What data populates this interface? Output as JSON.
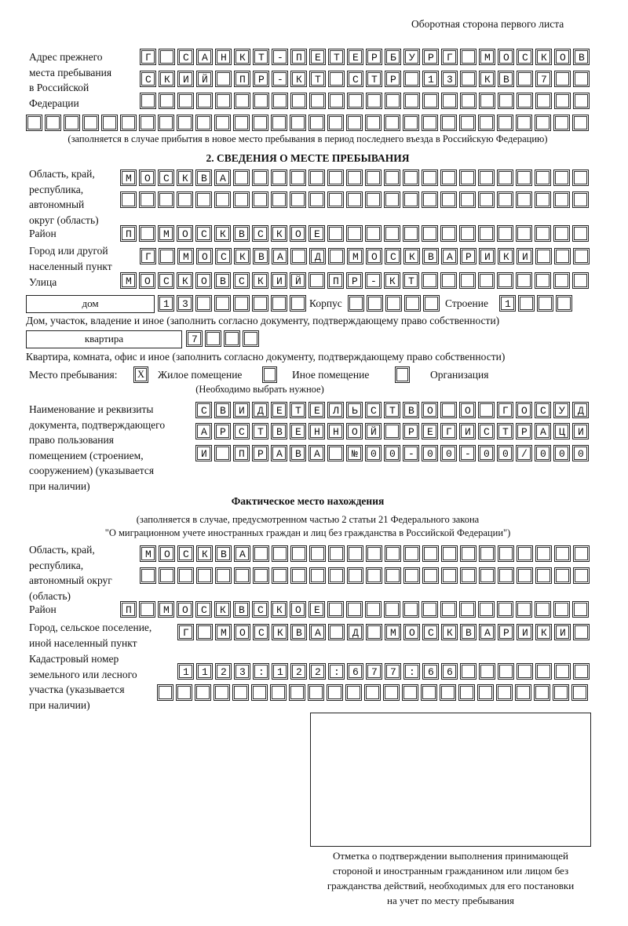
{
  "page_side": "Оборотная сторона первого листа",
  "previous_address": {
    "label_lines": [
      "Адрес прежнего",
      "места пребывания",
      "в Российской",
      "Федерации"
    ],
    "rows": [
      "Г САНКТ-ПЕТЕРБУРГ МОСКОВ",
      "СКИЙ ПР-КТ СТР 13 КВ 7",
      "",
      ""
    ],
    "note": "(заполняется в случае прибытия в новое место пребывания в период последнего въезда в Российскую Федерацию)"
  },
  "stay": {
    "section_title": "2. СВЕДЕНИЯ О МЕСТЕ ПРЕБЫВАНИЯ",
    "region_label_lines": [
      "Область, край,",
      "республика,",
      "автономный",
      "округ (область)"
    ],
    "region_rows": [
      "МОСКВА",
      ""
    ],
    "district_label": "Район",
    "district": "П МОСКВСКОЕ",
    "city_label_lines": [
      "Город или другой",
      "населенный пункт"
    ],
    "city": "Г МОСКВА Д МОСКВАРИКИ",
    "street_label": "Улица",
    "street": "МОСКОВСКИЙ ПР-КТ",
    "house_type": "дом",
    "house_number": "13",
    "korpus_label": "Корпус",
    "korpus": "",
    "stroenie_label": "Строение",
    "stroenie": "1",
    "house_caption": "Дом, участок, владение и иное (заполнить согласно документу, подтверждающему право собственности)",
    "apartment_type": "квартира",
    "apartment_number": "7",
    "apartment_caption": "Квартира, комната, офис и иное (заполнить согласно документу, подтверждающему право собственности)",
    "place_label": "Место пребывания:",
    "place_options": [
      {
        "label": "Жилое помещение",
        "mark": "X"
      },
      {
        "label": "Иное помещение",
        "mark": ""
      },
      {
        "label": "Организация",
        "mark": ""
      }
    ],
    "place_hint": "(Необходимо выбрать нужное)",
    "doc_label_lines": [
      "Наименование и реквизиты",
      "документа, подтверждающего",
      "право пользования",
      "помещением (строением,",
      "сооружением) (указывается",
      "при наличии)"
    ],
    "doc_rows": [
      "СВИДЕТЕЛЬСТВО О ГОСУД",
      "АРСТВЕННОЙ РЕГИСТРАЦИ",
      "И ПРАВА №00-00-00/000"
    ]
  },
  "actual": {
    "title": "Фактическое место нахождения",
    "note_lines": [
      "(заполняется в случае, предусмотренном частью 2 статьи 21 Федерального закона",
      "\"О миграционном учете иностранных граждан и лиц без гражданства в Российской Федерации\")"
    ],
    "region_label_lines": [
      "Область, край,",
      "республика,",
      "автономный округ",
      "(область)"
    ],
    "region_rows": [
      "МОСКВА",
      ""
    ],
    "district_label": "Район",
    "district": "П МОСКВСКОЕ",
    "city_label_lines": [
      "Город, сельское поселение,",
      "иной населенный пункт"
    ],
    "city": "Г МОСКВА Д МОСКВАРИКИ",
    "cadastral_label_lines": [
      "Кадастровый номер",
      "земельного или лесного",
      "участка (указывается",
      "при наличии)"
    ],
    "cadastral_rows": [
      "1123:122:677:66",
      ""
    ]
  },
  "confirmation_caption_lines": [
    "Отметка о подтверждении выполнения принимающей",
    "стороной и иностранным гражданином или лицом без",
    "гражданства действий, необходимых для его постановки",
    "на учет по месту пребывания"
  ]
}
